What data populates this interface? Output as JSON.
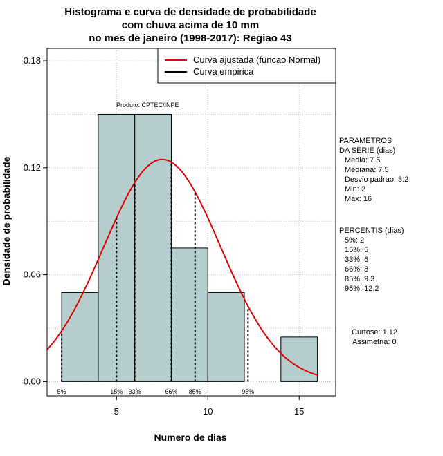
{
  "chart_data": {
    "type": "bar",
    "title_lines": [
      "Histograma e curva de densidade de probabilidade",
      "com chuva acima de 10 mm",
      "no mes de janeiro (1998-2017): Regiao 43"
    ],
    "xlabel": "Numero de dias",
    "ylabel": "Densidade de probabilidade",
    "xlim": [
      1.2,
      17
    ],
    "ylim": [
      -0.008,
      0.187
    ],
    "x_ticks": [
      5,
      10,
      15
    ],
    "y_ticks": [
      0.0,
      0.06,
      0.12,
      0.18
    ],
    "y_tick_labels": [
      "0.00",
      "0.06",
      "0.12",
      "0.18"
    ],
    "grid": true,
    "bins": [
      {
        "x0": 2,
        "x1": 4,
        "density": 0.05
      },
      {
        "x0": 4,
        "x1": 6,
        "density": 0.15
      },
      {
        "x0": 6,
        "x1": 8,
        "density": 0.15
      },
      {
        "x0": 8,
        "x1": 10,
        "density": 0.075
      },
      {
        "x0": 10,
        "x1": 12,
        "density": 0.05
      },
      {
        "x0": 12,
        "x1": 14,
        "density": 0.0
      },
      {
        "x0": 14,
        "x1": 16,
        "density": 0.025
      }
    ],
    "bar_color": "#b5cdcd",
    "normal_curve": {
      "mean": 7.5,
      "sd": 3.2,
      "x_from": 1.2,
      "x_to": 16,
      "color": "#e00000"
    },
    "percentile_lines": [
      {
        "label": "5%",
        "x": 2
      },
      {
        "label": "15%",
        "x": 5
      },
      {
        "label": "33%",
        "x": 6
      },
      {
        "label": "66%",
        "x": 8
      },
      {
        "label": "85%",
        "x": 9.3
      },
      {
        "label": "95%",
        "x": 12.2
      }
    ],
    "legend": {
      "placement": "top-right",
      "entries": [
        {
          "label": "Curva ajustada (funcao Normal)",
          "color": "#e00000"
        },
        {
          "label": "Curva empirica",
          "color": "#000000"
        }
      ]
    },
    "annotation": "Produto: CPTEC/INPE",
    "parametros": {
      "heading": [
        "PARAMETROS",
        "DA SERIE (dias)"
      ],
      "items": [
        "Media: 7.5",
        "Mediana: 7.5",
        "Desvio padrao: 3.2",
        "Min: 2",
        "Max: 16"
      ]
    },
    "percentis": {
      "heading": "PERCENTIS (dias)",
      "items": [
        "5%: 2",
        "15%: 5",
        "33%: 6",
        "66%: 8",
        "85%: 9.3",
        "95%: 12.2"
      ]
    },
    "extra_stats": [
      "Curtose: 1.12",
      "Assimetria: 0"
    ]
  }
}
